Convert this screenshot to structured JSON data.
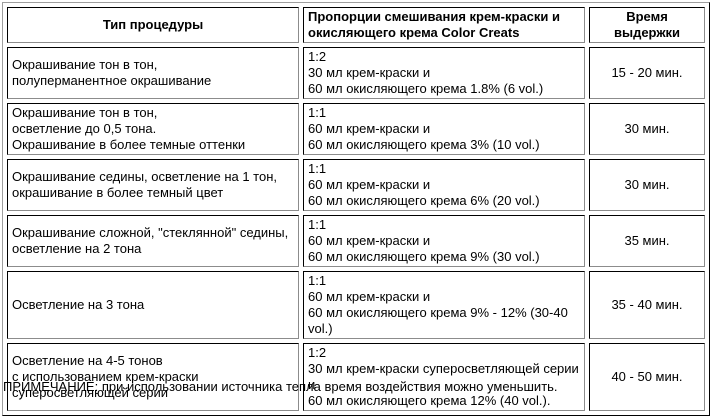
{
  "table": {
    "header": {
      "procedure_type": "Тип процедуры",
      "proportions": "Пропорции смешивания крем-краски и\nокисляющего крема Color Creats",
      "time": "Время\nвыдержки"
    },
    "rows": [
      {
        "procedure": "Окрашивание тон в тон,\nполуперманентное окрашивание",
        "proportion": "1:2\n30 мл крем-краски и\n60 мл окисляющего крема 1.8% (6 vol.)",
        "time": "15 - 20 мин."
      },
      {
        "procedure": "Окрашивание тон в тон,\nосветление до 0,5 тона.\nОкрашивание в более темные оттенки",
        "proportion": "1:1\n60 мл крем-краски и\n60 мл окисляющего крема 3% (10 vol.)",
        "time": "30 мин."
      },
      {
        "procedure": "Окрашивание седины, осветление на 1 тон,\nокрашивание в более темный цвет",
        "proportion": "1:1\n60 мл крем-краски и\n60 мл окисляющего крема 6% (20 vol.)",
        "time": "30 мин."
      },
      {
        "procedure": "Окрашивание сложной, \"стеклянной\" седины,\nосветление на 2 тона",
        "proportion": "1:1\n60 мл крем-краски и\n60 мл окисляющего крема 9% (30 vol.)",
        "time": "35 мин."
      },
      {
        "procedure": "Осветление на 3 тона",
        "proportion": "1:1\n60 мл крем-краски и\n60 мл окисляющего крема 9% - 12% (30-40 vol.)",
        "time": "35 - 40 мин."
      },
      {
        "procedure": "Осветление на 4-5 тонов\nс использованием крем-краски\nсуперосветляющей серии",
        "proportion": "1:2\n30 мл крем-краски суперосветляющей серии и\n60 мл окисляющего крема 12% (40 vol.).",
        "time": "40 - 50 мин."
      }
    ]
  },
  "note": "ПРИМЕЧАНИЕ: при использовании источника тепла время воздействия можно уменьшить.",
  "colors": {
    "text": "#000000",
    "background": "#ffffff",
    "cell_border_dark": "#000000",
    "cell_border_light": "#8c8c8c",
    "table_border_light": "#9e9e9e",
    "table_border_dark": "#000000"
  }
}
